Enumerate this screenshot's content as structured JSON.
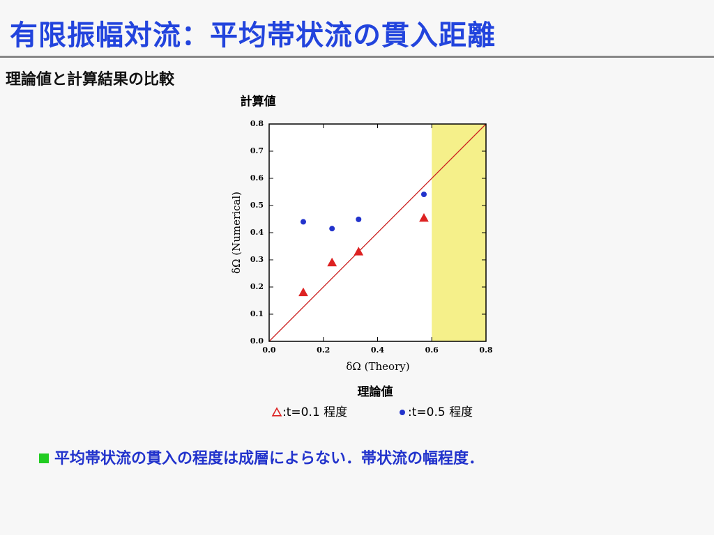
{
  "header": {
    "title": "有限振幅対流：平均帯状流の貫入距離"
  },
  "subtitle": "理論値と計算結果の比較",
  "chart_data": {
    "type": "scatter",
    "top_label": "計算値",
    "bottom_label": "理論値",
    "x_label": "δΩ (Theory)",
    "y_label": "δΩ (Numerical)",
    "xlim": [
      0,
      0.8
    ],
    "ylim": [
      0,
      0.8
    ],
    "xticks": [
      {
        "value": 0,
        "label": "0.0"
      },
      0.2,
      0.4,
      0.6,
      0.8
    ],
    "yticks": [
      {
        "value": 0,
        "label": "0.0"
      },
      0.1,
      0.2,
      0.3,
      0.4,
      0.5,
      0.6,
      0.7,
      0.8
    ],
    "shade_xrange": [
      0.6,
      0.8
    ],
    "shade_color": "#f5f08a",
    "diagonal": true,
    "diagonal_color": "#cc2222",
    "series": [
      {
        "name": ":t=0.1 程度",
        "marker": "triangle",
        "color": "#dd2222",
        "x": [
          0.126,
          0.232,
          0.33,
          0.571
        ],
        "values": [
          0.18,
          0.29,
          0.33,
          0.454
        ]
      },
      {
        "name": ":t=0.5 程度",
        "marker": "circle",
        "color": "#2233cc",
        "x": [
          0.126,
          0.232,
          0.33,
          0.571
        ],
        "values": [
          0.44,
          0.415,
          0.449,
          0.541
        ]
      }
    ]
  },
  "bullet": "平均帯状流の貫入の程度は成層によらない．帯状流の幅程度．"
}
